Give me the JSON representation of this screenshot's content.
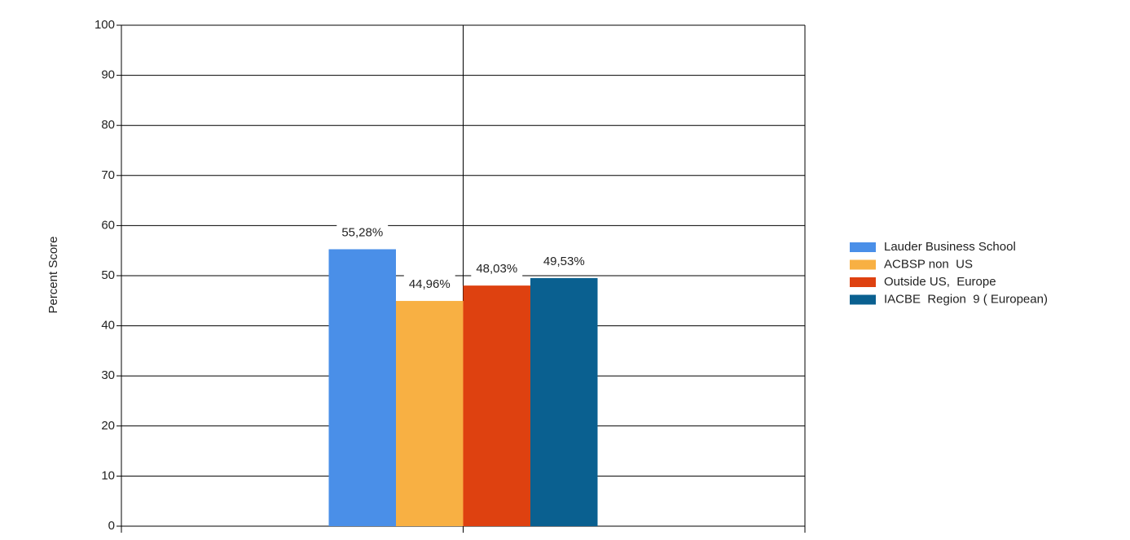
{
  "chart_data": {
    "type": "bar",
    "y_label": "Percent Score",
    "categories": [
      null
    ],
    "series": [
      {
        "name": "Lauder Business School",
        "color": "#4a8fe8",
        "values": [
          55.28
        ],
        "value_labels": [
          "55,28%"
        ]
      },
      {
        "name": "ACBSP non  US",
        "color": "#f8b043",
        "values": [
          44.96
        ],
        "value_labels": [
          "44,96%"
        ]
      },
      {
        "name": "Outside US,  Europe",
        "color": "#de4110",
        "values": [
          48.03
        ],
        "value_labels": [
          "48,03%"
        ]
      },
      {
        "name": "IACBE  Region  9 ( European)",
        "color": "#0a6090",
        "values": [
          49.53
        ],
        "value_labels": [
          "49,53%"
        ]
      }
    ],
    "ylim": [
      0,
      100
    ],
    "yticks": [
      0,
      10,
      20,
      30,
      40,
      50,
      60,
      70,
      80,
      90,
      100
    ],
    "grid": true,
    "legend": "right"
  }
}
